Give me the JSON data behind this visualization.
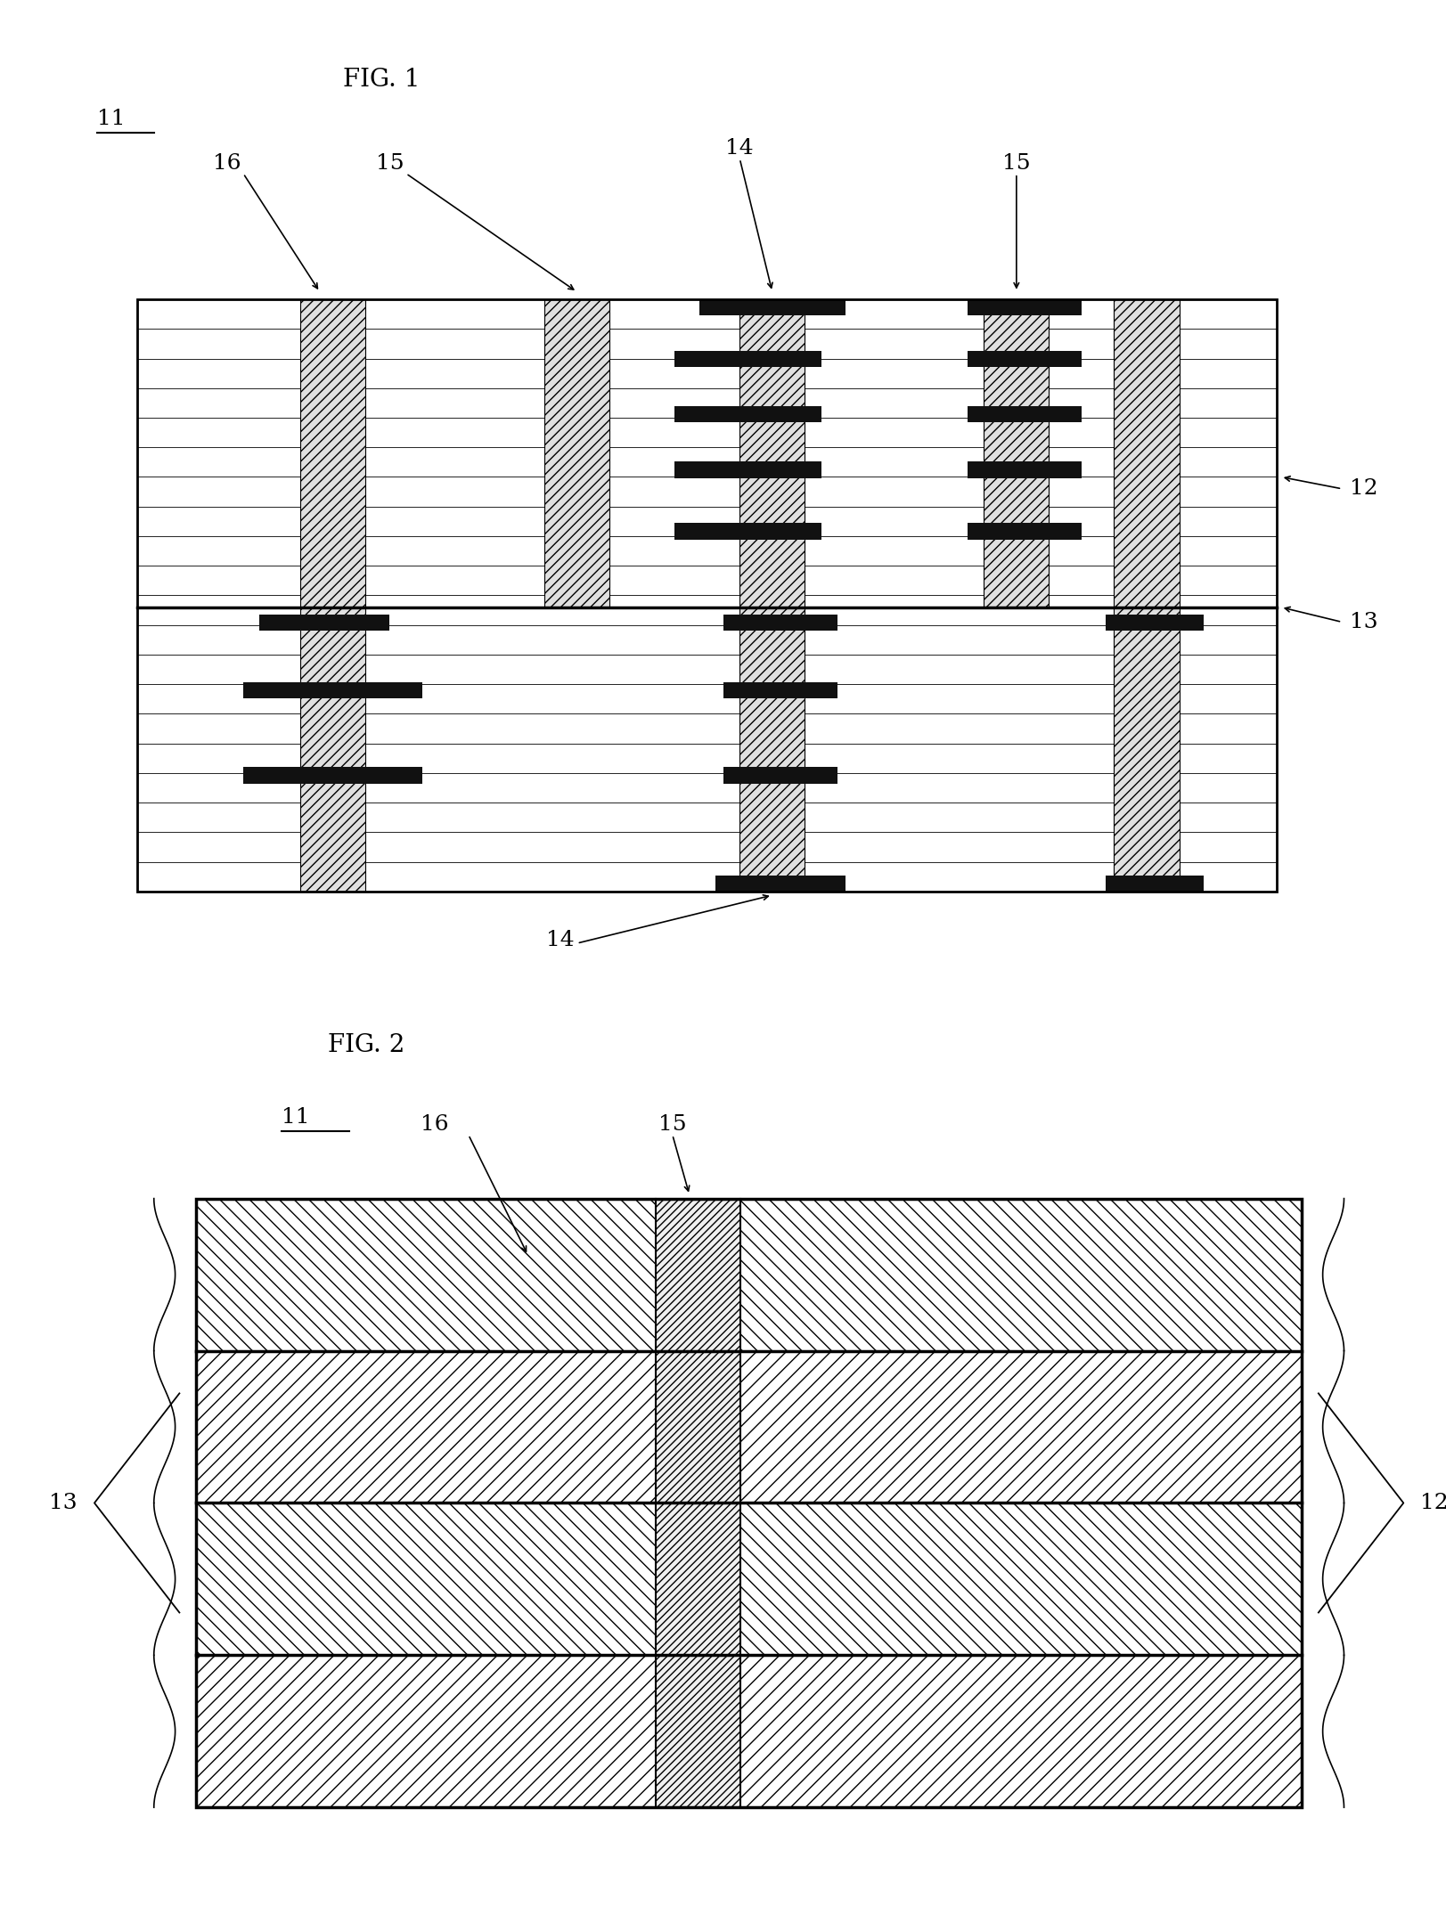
{
  "fig_width": 16.24,
  "fig_height": 21.68,
  "bg_color": "#ffffff",
  "conductor_color": "#111111",
  "via_color": "#e0e0e0",
  "fig1_title": "FIG. 1",
  "fig2_title": "FIG. 2",
  "label_11": "11",
  "label_12": "12",
  "label_13": "13",
  "label_14": "14",
  "label_15": "15",
  "label_16": "16",
  "font_size_title": 20,
  "font_size_label": 18,
  "font_size_small": 16
}
